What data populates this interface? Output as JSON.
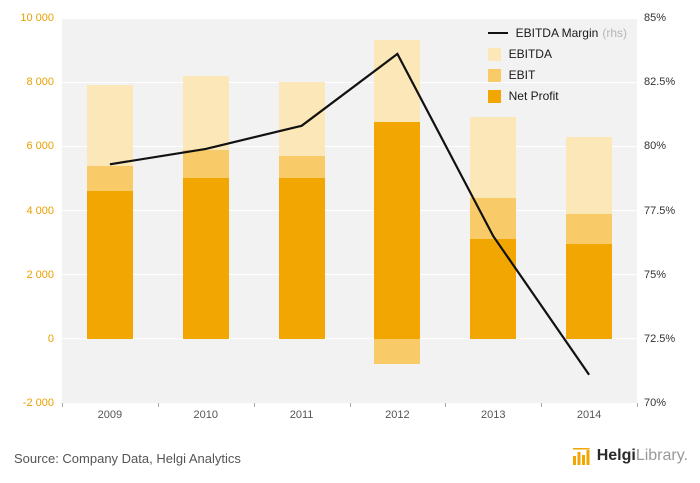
{
  "chart_data": {
    "type": "bar",
    "categories": [
      "2009",
      "2010",
      "2011",
      "2012",
      "2013",
      "2014"
    ],
    "series": [
      {
        "name": "EBITDA",
        "color": "#fbe7b7",
        "values": [
          7900,
          8200,
          8000,
          9300,
          6900,
          6300
        ]
      },
      {
        "name": "EBIT",
        "color": "#f8ca68",
        "values": [
          5400,
          5900,
          5700,
          -800,
          4400,
          3900
        ]
      },
      {
        "name": "Net Profit",
        "color": "#f2a602",
        "values": [
          4600,
          5000,
          5000,
          6750,
          3100,
          2950
        ]
      }
    ],
    "line_series": {
      "name": "EBITDA Margin",
      "suffix": "(rhs)",
      "color": "#111111",
      "axis": "right",
      "values": [
        79.3,
        79.9,
        80.8,
        83.6,
        76.5,
        71.1
      ]
    },
    "left_axis": {
      "min": -2000,
      "max": 10000,
      "step": 2000,
      "labels": [
        "-2 000",
        "0",
        "2 000",
        "4 000",
        "6 000",
        "8 000",
        "10 000"
      ]
    },
    "right_axis": {
      "min": 70,
      "max": 85,
      "step": 2.5,
      "labels": [
        "70%",
        "72.5%",
        "75%",
        "77.5%",
        "80%",
        "82.5%",
        "85%"
      ]
    },
    "legend_position": "top-right",
    "grid": true,
    "plot_background": "#f2f2f2",
    "title": ""
  },
  "footer": {
    "source": "Source: Company Data, Helgi Analytics",
    "logo_bold": "Helgi",
    "logo_light": "Library."
  }
}
